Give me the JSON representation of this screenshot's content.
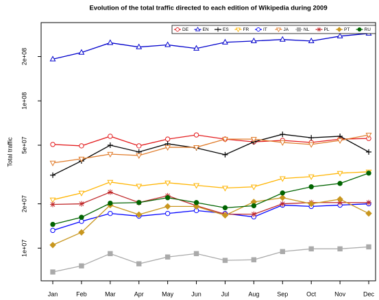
{
  "chart_data": {
    "type": "line",
    "title": "Evolution of the total traffic directed to each edition of Wikipedia during 2009",
    "y_label": "Total traffic",
    "log_scale": true,
    "legend_position": "top-right",
    "categories": [
      "Jan",
      "Feb",
      "Mar",
      "Apr",
      "May",
      "Jun",
      "Jul",
      "Aug",
      "Sep",
      "Oct",
      "Nov",
      "Dec"
    ],
    "ylim": [
      6000000,
      340000000
    ],
    "yticks": [
      {
        "value": 10000000,
        "label": "1e+07"
      },
      {
        "value": 20000000,
        "label": "2e+07"
      },
      {
        "value": 50000000,
        "label": "5e+07"
      },
      {
        "value": 100000000,
        "label": "1e+08"
      },
      {
        "value": 200000000,
        "label": "2e+08"
      }
    ],
    "series": [
      {
        "name": "DE",
        "color": "#e31a1c",
        "marker": "circle",
        "values": [
          50600000,
          49500000,
          57500000,
          49500000,
          55000000,
          58700000,
          55000000,
          52700000,
          53900000,
          52200000,
          55000000,
          55600000
        ]
      },
      {
        "name": "EN",
        "color": "#0000cc",
        "marker": "triangle-up",
        "values": [
          192000000,
          213000000,
          248000000,
          232000000,
          240000000,
          227000000,
          250000000,
          255000000,
          261000000,
          255000000,
          275000000,
          287000000
        ]
      },
      {
        "name": "ES",
        "color": "#000000",
        "marker": "plus",
        "values": [
          31300000,
          39100000,
          50000000,
          45000000,
          51100000,
          47900000,
          43100000,
          52700000,
          59300000,
          56200000,
          57500000,
          45000000
        ]
      },
      {
        "name": "FR",
        "color": "#ffb400",
        "marker": "triangle-down",
        "values": [
          21300000,
          23700000,
          28100000,
          26400000,
          27800000,
          26700000,
          25600000,
          26100000,
          29700000,
          30600000,
          32300000,
          33000000
        ]
      },
      {
        "name": "IT",
        "color": "#0000ff",
        "marker": "circle",
        "values": [
          13200000,
          15200000,
          17200000,
          16500000,
          17200000,
          18000000,
          17200000,
          16300000,
          19600000,
          19200000,
          19600000,
          20000000
        ]
      },
      {
        "name": "JA",
        "color": "#e07b2a",
        "marker": "triangle-down",
        "values": [
          37900000,
          40400000,
          43500000,
          42600000,
          48400000,
          48400000,
          55000000,
          55000000,
          52200000,
          50600000,
          53900000,
          58700000
        ]
      },
      {
        "name": "NL",
        "color": "#aaaaaa",
        "marker": "square",
        "values": [
          6890000,
          7580000,
          9180000,
          7830000,
          8710000,
          9180000,
          8260000,
          8340000,
          9480000,
          9890000,
          9890000,
          10200000
        ]
      },
      {
        "name": "PL",
        "color": "#c0282a",
        "marker": "asterisk",
        "values": [
          19800000,
          20000000,
          24000000,
          20400000,
          22700000,
          19400000,
          17000000,
          17000000,
          20000000,
          20400000,
          20400000,
          20400000
        ]
      },
      {
        "name": "PT",
        "color": "#c8961e",
        "marker": "diamond",
        "values": [
          10500000,
          12800000,
          19600000,
          16900000,
          19200000,
          19200000,
          16700000,
          20600000,
          22000000,
          20000000,
          21500000,
          17200000
        ]
      },
      {
        "name": "RU",
        "color": "#006400",
        "marker": "filled-circle",
        "values": [
          14500000,
          16200000,
          20200000,
          20400000,
          22000000,
          20400000,
          18800000,
          19400000,
          23700000,
          26100000,
          27500000,
          32300000
        ]
      }
    ]
  }
}
